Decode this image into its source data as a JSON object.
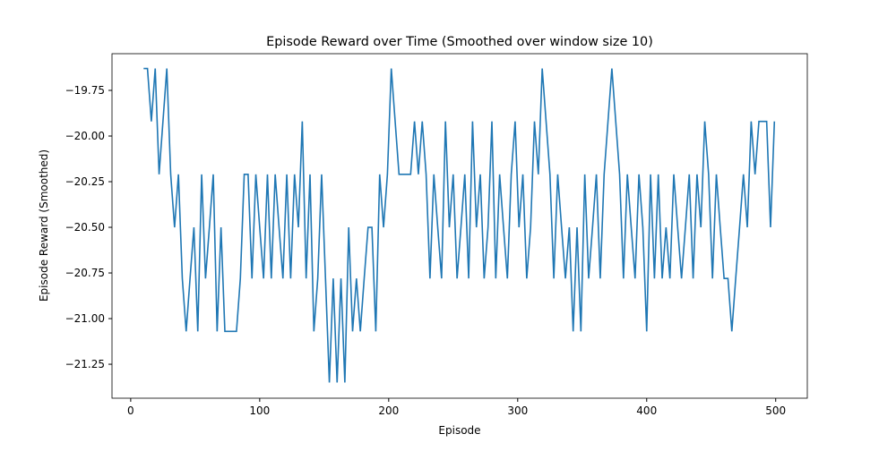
{
  "chart_data": {
    "type": "line",
    "title": "Episode Reward over Time (Smoothed over window size 10)",
    "x_label": "Episode",
    "y_label": "Episode Reward (Smoothed)",
    "x": [
      10,
      13,
      16,
      19,
      22,
      25,
      28,
      31,
      34,
      37,
      40,
      43,
      46,
      49,
      52,
      55,
      58,
      61,
      64,
      67,
      70,
      73,
      76,
      79,
      82,
      85,
      88,
      91,
      94,
      97,
      100,
      103,
      106,
      109,
      112,
      115,
      118,
      121,
      124,
      127,
      130,
      133,
      136,
      139,
      142,
      145,
      148,
      151,
      154,
      157,
      160,
      163,
      166,
      169,
      172,
      175,
      178,
      181,
      184,
      187,
      190,
      193,
      196,
      199,
      202,
      205,
      208,
      211,
      214,
      217,
      220,
      223,
      226,
      229,
      232,
      235,
      238,
      241,
      244,
      247,
      250,
      253,
      256,
      259,
      262,
      265,
      268,
      271,
      274,
      277,
      280,
      283,
      286,
      289,
      292,
      295,
      298,
      301,
      304,
      307,
      310,
      313,
      316,
      319,
      322,
      325,
      328,
      331,
      334,
      337,
      340,
      343,
      346,
      349,
      352,
      355,
      358,
      361,
      364,
      367,
      370,
      373,
      376,
      379,
      382,
      385,
      388,
      391,
      394,
      397,
      400,
      403,
      406,
      409,
      412,
      415,
      418,
      421,
      424,
      427,
      430,
      433,
      436,
      439,
      442,
      445,
      448,
      451,
      454,
      457,
      460,
      463,
      466,
      469,
      472,
      475,
      478,
      481,
      484,
      487,
      490,
      493,
      496,
      499
    ],
    "series": [
      {
        "name": "Episode Reward (Smoothed)",
        "color": "#1f77b4",
        "values": [
          -19.63,
          -19.63,
          -19.92,
          -19.63,
          -20.21,
          -19.92,
          -19.63,
          -20.21,
          -20.5,
          -20.21,
          -20.78,
          -21.07,
          -20.78,
          -20.5,
          -21.07,
          -20.21,
          -20.78,
          -20.5,
          -20.21,
          -21.07,
          -20.5,
          -21.07,
          -21.07,
          -21.07,
          -21.07,
          -20.78,
          -20.21,
          -20.21,
          -20.78,
          -20.21,
          -20.5,
          -20.78,
          -20.21,
          -20.78,
          -20.21,
          -20.5,
          -20.78,
          -20.21,
          -20.78,
          -20.21,
          -20.5,
          -19.92,
          -20.78,
          -20.21,
          -21.07,
          -20.78,
          -20.21,
          -20.78,
          -21.35,
          -20.78,
          -21.35,
          -20.78,
          -21.35,
          -20.5,
          -21.07,
          -20.78,
          -21.07,
          -20.78,
          -20.5,
          -20.5,
          -21.07,
          -20.21,
          -20.5,
          -20.21,
          -19.63,
          -19.92,
          -20.21,
          -20.21,
          -20.21,
          -20.21,
          -19.92,
          -20.21,
          -19.92,
          -20.21,
          -20.78,
          -20.21,
          -20.5,
          -20.78,
          -19.92,
          -20.5,
          -20.21,
          -20.78,
          -20.5,
          -20.21,
          -20.78,
          -19.92,
          -20.5,
          -20.21,
          -20.78,
          -20.5,
          -19.92,
          -20.78,
          -20.21,
          -20.5,
          -20.78,
          -20.21,
          -19.92,
          -20.5,
          -20.21,
          -20.78,
          -20.5,
          -19.92,
          -20.21,
          -19.63,
          -19.92,
          -20.21,
          -20.78,
          -20.21,
          -20.5,
          -20.78,
          -20.5,
          -21.07,
          -20.5,
          -21.07,
          -20.21,
          -20.78,
          -20.5,
          -20.21,
          -20.78,
          -20.21,
          -19.92,
          -19.63,
          -19.92,
          -20.21,
          -20.78,
          -20.21,
          -20.5,
          -20.78,
          -20.21,
          -20.5,
          -21.07,
          -20.21,
          -20.78,
          -20.21,
          -20.78,
          -20.5,
          -20.78,
          -20.21,
          -20.5,
          -20.78,
          -20.5,
          -20.21,
          -20.78,
          -20.21,
          -20.5,
          -19.92,
          -20.21,
          -20.78,
          -20.21,
          -20.5,
          -20.78,
          -20.78,
          -21.07,
          -20.78,
          -20.5,
          -20.21,
          -20.5,
          -19.92,
          -20.21,
          -19.92,
          -19.92,
          -19.92,
          -20.5,
          -19.92
        ]
      }
    ],
    "xlim": [
      -14.5,
      524.5
    ],
    "xticks": [
      0,
      100,
      200,
      300,
      400,
      500
    ],
    "ylim": [
      -21.436,
      -19.549
    ],
    "yticks": [
      {
        "value": -21.25,
        "label": "−21.25"
      },
      {
        "value": -21,
        "label": "−21.00"
      },
      {
        "value": -20.75,
        "label": "−20.75"
      },
      {
        "value": -20.5,
        "label": "−20.50"
      },
      {
        "value": -20.25,
        "label": "−20.25"
      },
      {
        "value": -20,
        "label": "−20.00"
      },
      {
        "value": -19.75,
        "label": "−19.75"
      }
    ],
    "grid": false
  }
}
